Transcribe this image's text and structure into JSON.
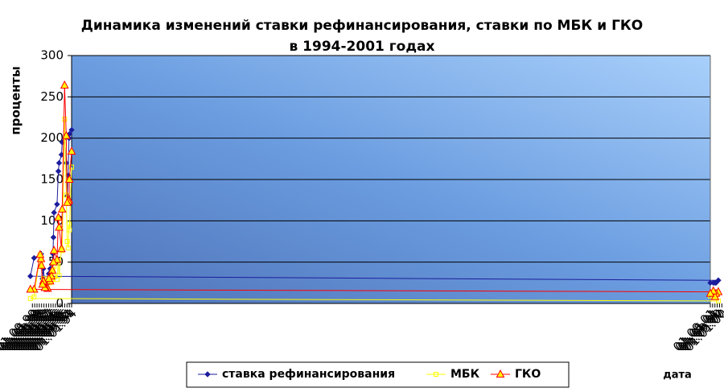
{
  "chart_data": {
    "type": "line",
    "title": [
      "Динамика изменений ставки рефинансирования, ставки по МБК и ГКО",
      "в 1994-2001 годах"
    ],
    "y_label": "проценты",
    "x_label": "дата",
    "ylim": [
      0,
      300
    ],
    "yticks": [
      0,
      50,
      100,
      150,
      200,
      250,
      300
    ],
    "xlim": [
      "01.01.94",
      "01.09.01"
    ],
    "xticks": [
      "01.01.94",
      "01.05.94",
      "01.09.94",
      "01.01.95",
      "01.05.95",
      "01.09.95",
      "01.01.96",
      "01.05.96",
      "01.09.96",
      "01.01.97",
      "01.05.97",
      "01.09.97",
      "01.01.98",
      "01.05.98",
      "01.09.98",
      "01.01.99",
      "01.05.99",
      "01.09.99",
      "01.01.00",
      "01.05.00",
      "01.09.00",
      "01.01.01",
      "01.05.01",
      "01.09.01"
    ],
    "grid": true,
    "legend": "bottom",
    "series": [
      {
        "name": "ставка рефинансирования",
        "color": "#1c1c9c",
        "marker": "diamond",
        "x": [
          "01.01.94",
          "26.04.94",
          "16.05.94",
          "28.06.94",
          "20.08.94",
          "09.10.94",
          "06.01.95",
          "11.05.95",
          "16.06.95",
          "21.10.95",
          "29.11.95",
          "09.02.96",
          "15.07.96",
          "16.08.96",
          "10.09.96",
          "16.10.96",
          "07.02.97",
          "16.04.97",
          "15.06.97",
          "04.11.97",
          "01.02.98",
          "13.03.98",
          "29.05.98",
          "04.06.99",
          "16.12.99",
          "04.07.00",
          "06.11.00",
          "28.12.00",
          "25.03.01",
          "01.09.01"
        ],
        "values": [
          210,
          205,
          200,
          155,
          130,
          170,
          200,
          195,
          180,
          170,
          160,
          120,
          110,
          80,
          60,
          48,
          42,
          36,
          24,
          23,
          42,
          30,
          60,
          55,
          33,
          28,
          25,
          25,
          25,
          25
        ]
      },
      {
        "name": "МБК",
        "color": "#ffff00",
        "marker": "square",
        "x": [
          "01.01.94",
          "26.04.94",
          "16.05.94",
          "28.06.94",
          "20.08.94",
          "09.10.94",
          "06.01.95",
          "11.05.95",
          "16.06.95",
          "21.10.95",
          "29.11.95",
          "09.02.96",
          "15.07.96",
          "16.08.96",
          "16.10.96",
          "04.12.96",
          "07.02.97",
          "16.04.97",
          "15.06.97",
          "03.10.97",
          "11.11.97",
          "01.02.98",
          "13.03.98",
          "12.05.98",
          "03.06.98",
          "18.07.98",
          "04.06.99",
          "16.12.99",
          "04.07.00",
          "06.11.00",
          "28.12.00",
          "25.03.01",
          "01.09.01"
        ],
        "values": [
          165,
          89,
          96,
          67,
          75,
          131,
          223,
          64,
          66,
          34,
          52,
          29,
          45,
          32,
          29,
          27,
          25,
          30,
          18,
          19,
          20,
          30,
          25,
          45,
          51,
          59,
          8,
          6,
          3,
          8,
          9,
          10,
          9
        ]
      },
      {
        "name": "ГКО",
        "color": "#ff0000",
        "marker": "triangle",
        "x": [
          "01.01.94",
          "26.04.94",
          "16.05.94",
          "28.06.94",
          "20.08.94",
          "09.10.94",
          "06.01.95",
          "11.05.95",
          "16.06.95",
          "21.10.95",
          "29.11.95",
          "09.02.96",
          "15.07.96",
          "16.08.96",
          "16.10.96",
          "04.12.96",
          "07.02.97",
          "16.04.97",
          "15.06.97",
          "03.10.97",
          "11.11.97",
          "01.02.98",
          "13.03.98",
          "12.05.98",
          "03.06.98",
          "18.07.98",
          "04.06.99",
          "16.12.99",
          "04.07.00",
          "06.11.00",
          "28.12.00",
          "25.03.01",
          "01.09.01"
        ],
        "values": [
          184,
          150,
          125,
          124,
          122,
          203,
          264,
          114,
          66,
          92,
          104,
          53,
          64,
          50,
          40,
          33,
          27,
          30,
          18,
          19,
          19,
          27,
          23,
          46,
          54,
          59,
          17,
          17,
          14,
          12,
          8,
          15,
          12
        ]
      }
    ]
  }
}
